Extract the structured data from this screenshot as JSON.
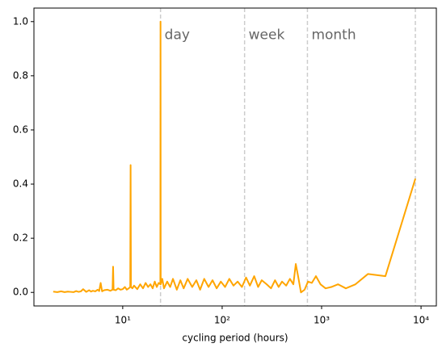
{
  "chart_data": {
    "type": "line",
    "log_x": true,
    "xlabel": "cycling period (hours)",
    "x": [
      2,
      2.2,
      2.4,
      2.6,
      2.8,
      3,
      3.2,
      3.4,
      3.6,
      3.8,
      4,
      4.3,
      4.6,
      4.8,
      5,
      5.3,
      5.6,
      5.8,
      6,
      6.2,
      6.5,
      7,
      7.5,
      7.9,
      8,
      8.1,
      8.5,
      9,
      9.5,
      10,
      10.5,
      11,
      11.5,
      11.9,
      12,
      12.1,
      12.5,
      13,
      14,
      15,
      16,
      17,
      18,
      19,
      20,
      21,
      22,
      23,
      23.9,
      24,
      24.1,
      25,
      26,
      28,
      30,
      32,
      35,
      38,
      41,
      45,
      50,
      55,
      60,
      66,
      73,
      80,
      88,
      97,
      107,
      118,
      130,
      143,
      158,
      174,
      190,
      210,
      230,
      250,
      280,
      310,
      340,
      370,
      400,
      440,
      480,
      520,
      550,
      580,
      620,
      674,
      730,
      797,
      877,
      974,
      1096,
      1252,
      1461,
      1753,
      2191,
      2922,
      4383,
      8766
    ],
    "series": [
      {
        "color": "#ffa500",
        "values": [
          0.003,
          0.001,
          0.004,
          0.001,
          0.003,
          0.002,
          0.001,
          0.005,
          0.002,
          0.004,
          0.012,
          0.002,
          0.008,
          0.003,
          0.006,
          0.004,
          0.01,
          0.005,
          0.035,
          0.004,
          0.008,
          0.01,
          0.006,
          0.01,
          0.095,
          0.01,
          0.008,
          0.015,
          0.01,
          0.012,
          0.02,
          0.01,
          0.015,
          0.02,
          0.47,
          0.02,
          0.015,
          0.025,
          0.012,
          0.03,
          0.015,
          0.035,
          0.02,
          0.03,
          0.015,
          0.04,
          0.02,
          0.035,
          0.03,
          1.0,
          0.03,
          0.05,
          0.015,
          0.04,
          0.02,
          0.05,
          0.01,
          0.045,
          0.015,
          0.05,
          0.02,
          0.045,
          0.01,
          0.05,
          0.02,
          0.045,
          0.015,
          0.04,
          0.02,
          0.05,
          0.025,
          0.04,
          0.02,
          0.055,
          0.025,
          0.06,
          0.02,
          0.045,
          0.03,
          0.015,
          0.045,
          0.02,
          0.04,
          0.025,
          0.05,
          0.03,
          0.105,
          0.06,
          0.0,
          0.01,
          0.04,
          0.035,
          0.06,
          0.03,
          0.015,
          0.02,
          0.03,
          0.015,
          0.03,
          0.068,
          0.06,
          0.42
        ]
      }
    ],
    "vlines": [
      24,
      168,
      720,
      8766
    ],
    "annotations": [
      "day",
      "week",
      "month"
    ],
    "annotation_y": 0.95,
    "vline_color": "#cccccc",
    "xlim": [
      1.28,
      14250
    ],
    "ylim": [
      -0.05,
      1.05
    ],
    "xticks": [
      {
        "value": 10,
        "label": "10¹"
      },
      {
        "value": 100,
        "label": "10²"
      },
      {
        "value": 1000,
        "label": "10³"
      },
      {
        "value": 10000,
        "label": "10⁴"
      }
    ],
    "yticks": [
      {
        "value": 0,
        "label": "0.0"
      },
      {
        "value": 0.2,
        "label": "0.2"
      },
      {
        "value": 0.4,
        "label": "0.4"
      },
      {
        "value": 0.6,
        "label": "0.6"
      },
      {
        "value": 0.8,
        "label": "0.8"
      },
      {
        "value": 1.0,
        "label": "1.0"
      }
    ]
  }
}
